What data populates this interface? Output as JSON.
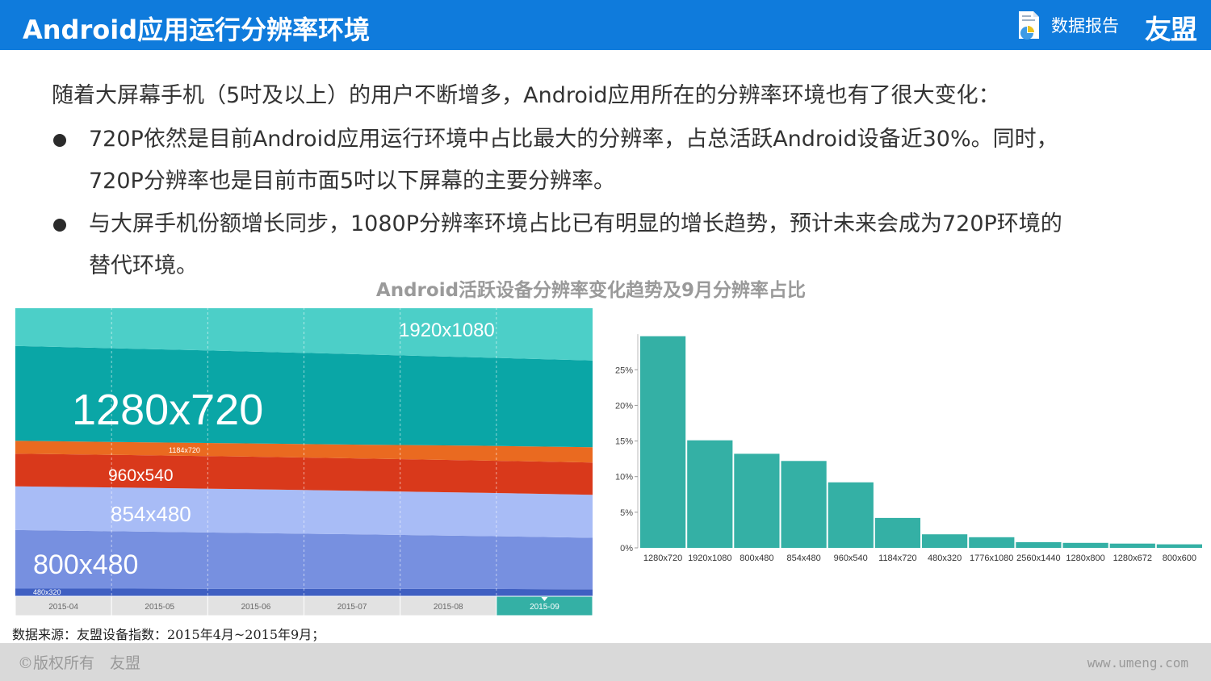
{
  "header": {
    "title": "Android应用运行分辨率环境",
    "report_label": "数据报告",
    "logo": "友盟",
    "report_icon": "document-chart-icon"
  },
  "intro": "随着大屏幕手机（5吋及以上）的用户不断增多，Android应用所在的分辨率环境也有了很大变化：",
  "bullets": [
    {
      "line1": "720P依然是目前Android应用运行环境中占比最大的分辨率，占总活跃Android设备近30%。同时，",
      "line2": "720P分辨率也是目前市面5吋以下屏幕的主要分辨率。"
    },
    {
      "line1": "与大屏手机份额增长同步，1080P分辨率环境占比已有明显的增长趋势，预计未来会成为720P环境的",
      "line2": "替代环境。"
    }
  ],
  "chart_title": "Android活跃设备分辨率变化趋势及9月分辨率占比",
  "chart_data": [
    {
      "type": "area",
      "stacked": true,
      "percent_stacked": true,
      "x": [
        "2015-04",
        "2015-05",
        "2015-06",
        "2015-07",
        "2015-08",
        "2015-09"
      ],
      "highlighted_x": "2015-09",
      "series": [
        {
          "name": "480x320",
          "color": "#3f5fc2",
          "values": [
            2.5,
            2.5,
            2.4,
            2.4,
            2.4,
            2.3
          ]
        },
        {
          "name": "800x480",
          "color": "#7790e0",
          "values": [
            19,
            18.6,
            18.2,
            17.8,
            17.4,
            17
          ]
        },
        {
          "name": "854x480",
          "color": "#a8bcf6",
          "values": [
            14.2,
            14.2,
            14.2,
            14.2,
            14.2,
            14.2
          ]
        },
        {
          "name": "960x540",
          "color": "#d9391b",
          "values": [
            10.6,
            10.6,
            10.6,
            10.6,
            10.6,
            10.6
          ]
        },
        {
          "name": "1184x720",
          "color": "#ea6a20",
          "values": [
            4.2,
            4.2,
            4.3,
            4.5,
            4.8,
            5.1
          ]
        },
        {
          "name": "1280x720",
          "color": "#0aa6a6",
          "values": [
            30.8,
            30.4,
            29.9,
            29.5,
            29,
            28.6
          ]
        },
        {
          "name": "1920x1080",
          "color": "#4ccfc8",
          "values": [
            12.5,
            13.4,
            14.3,
            15.3,
            16.4,
            17.5
          ]
        }
      ],
      "ylim": [
        0,
        100
      ],
      "grid": true
    },
    {
      "type": "bar",
      "categories": [
        "1280x720",
        "1920x1080",
        "800x480",
        "854x480",
        "960x540",
        "1184x720",
        "480x320",
        "1776x1080",
        "2560x1440",
        "1280x800",
        "1280x672",
        "800x600"
      ],
      "values": [
        29.7,
        15.1,
        13.2,
        12.2,
        9.2,
        4.2,
        1.9,
        1.5,
        0.8,
        0.7,
        0.6,
        0.5
      ],
      "yticks": [
        "0%",
        "5%",
        "10%",
        "15%",
        "20%",
        "25%"
      ],
      "ylim": [
        0,
        30
      ],
      "color": "#34b0a5"
    }
  ],
  "source": "数据来源：友盟设备指数：2015年4月~2015年9月；",
  "footer": {
    "copyright": "©版权所有　友盟",
    "website": "www.umeng.com"
  }
}
